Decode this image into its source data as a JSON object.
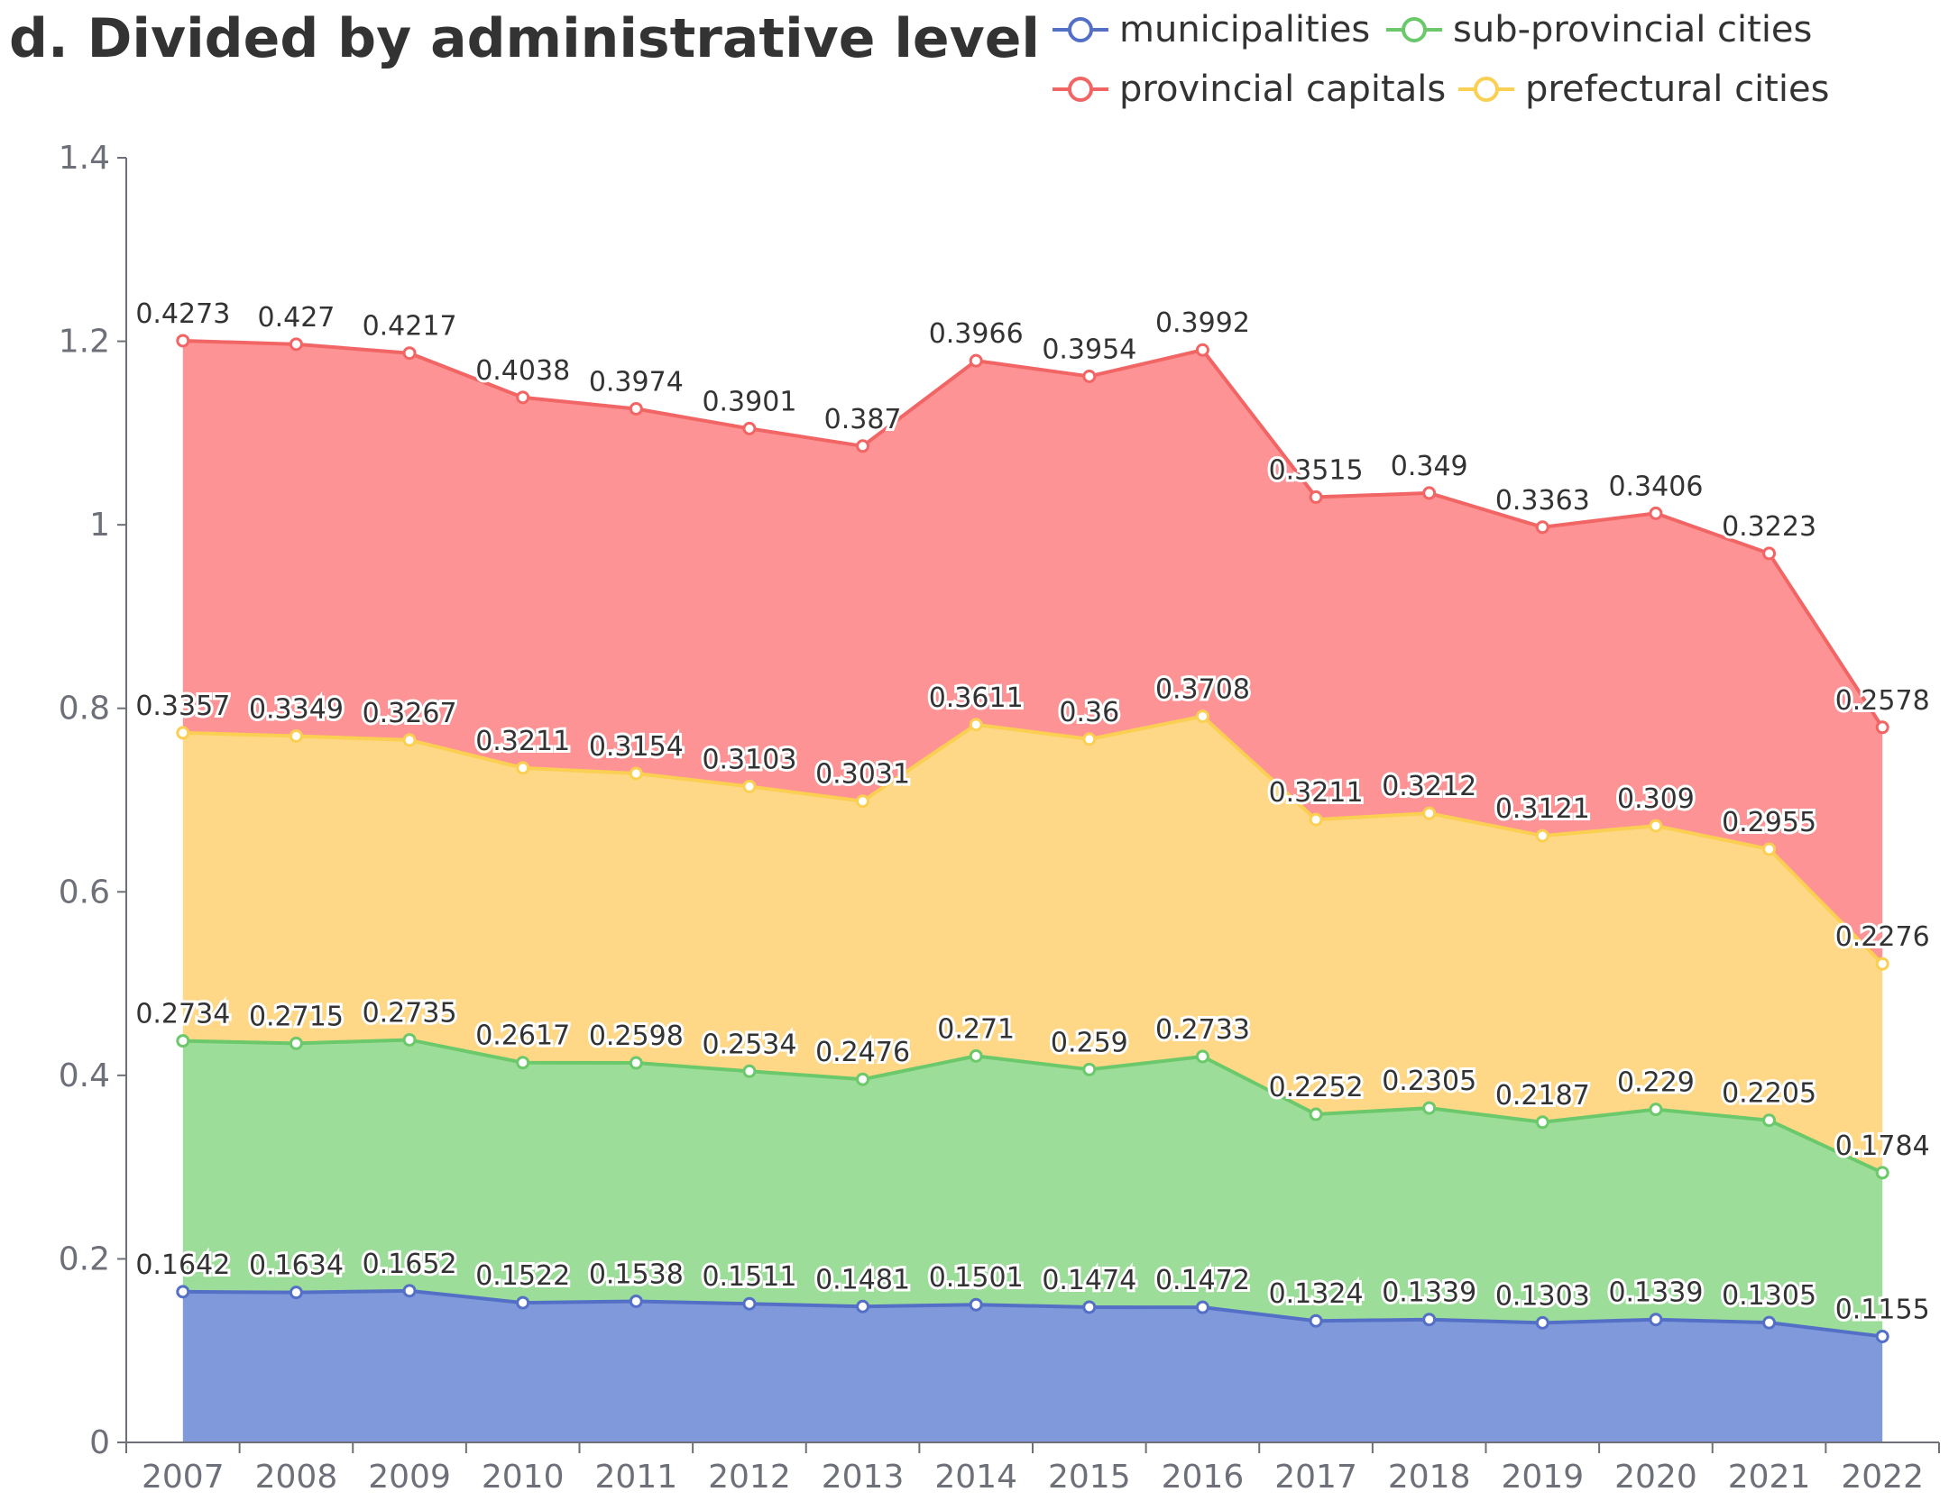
{
  "chart_data": {
    "type": "area",
    "stacked": true,
    "title": "d. Divided by administrative level",
    "categories": [
      "2007",
      "2008",
      "2009",
      "2010",
      "2011",
      "2012",
      "2013",
      "2014",
      "2015",
      "2016",
      "2017",
      "2018",
      "2019",
      "2020",
      "2021",
      "2022"
    ],
    "series": [
      {
        "name": "municipalities",
        "color": "#5470c6",
        "fill": "#8099da",
        "values": [
          0.1642,
          0.1634,
          0.1652,
          0.1522,
          0.1538,
          0.1511,
          0.1481,
          0.1501,
          0.1474,
          0.1472,
          0.1324,
          0.1339,
          0.1303,
          0.1339,
          0.1305,
          0.1155
        ],
        "labels": [
          "0.1642",
          "0.1634",
          "0.1652",
          "0.1522",
          "0.1538",
          "0.1511",
          "0.1481",
          "0.1501",
          "0.1474",
          "0.1472",
          "0.1324",
          "0.1339",
          "0.1303",
          "0.1339",
          "0.1305",
          "0.1155"
        ]
      },
      {
        "name": "sub-provincial cities",
        "color": "#6bc96b",
        "fill": "#9ddd9a",
        "values": [
          0.2734,
          0.2715,
          0.2735,
          0.2617,
          0.2598,
          0.2534,
          0.2476,
          0.271,
          0.259,
          0.2733,
          0.2252,
          0.2305,
          0.2187,
          0.229,
          0.2205,
          0.1784
        ],
        "labels": [
          "0.2734",
          "0.2715",
          "0.2735",
          "0.2617",
          "0.2598",
          "0.2534",
          "0.2476",
          "0.271",
          "0.259",
          "0.2733",
          "0.2252",
          "0.2305",
          "0.2187",
          "0.229",
          "0.2205",
          "0.1784"
        ]
      },
      {
        "name": "prefectural cities",
        "color": "#fbcf52",
        "fill": "#fed887",
        "values": [
          0.3357,
          0.3349,
          0.3267,
          0.3211,
          0.3154,
          0.3103,
          0.3031,
          0.3611,
          0.36,
          0.3708,
          0.3211,
          0.3212,
          0.3121,
          0.309,
          0.2955,
          0.2276
        ],
        "labels": [
          "0.3357",
          "0.3349",
          "0.3267",
          "0.3211",
          "0.3154",
          "0.3103",
          "0.3031",
          "0.3611",
          "0.36",
          "0.3708",
          "0.3211",
          "0.3212",
          "0.3121",
          "0.309",
          "0.2955",
          "0.2276"
        ]
      },
      {
        "name": "provincial capitals",
        "color": "#f26565",
        "fill": "#fd9394",
        "values": [
          0.4273,
          0.427,
          0.4217,
          0.4038,
          0.3974,
          0.3901,
          0.387,
          0.3966,
          0.3954,
          0.3992,
          0.3515,
          0.349,
          0.3363,
          0.3406,
          0.3223,
          0.2578
        ],
        "labels": [
          "0.4273",
          "0.427",
          "0.4217",
          "0.4038",
          "0.3974",
          "0.3901",
          "0.387",
          "0.3966",
          "0.3954",
          "0.3992",
          "0.3515",
          "0.349",
          "0.3363",
          "0.3406",
          "0.3223",
          "0.2578"
        ]
      }
    ],
    "legend_order": [
      "municipalities",
      "sub-provincial cities",
      "provincial capitals",
      "prefectural cities"
    ],
    "ylim": [
      0,
      1.4
    ],
    "yticks": [
      0,
      0.2,
      0.4,
      0.6,
      0.8,
      1,
      1.2,
      1.4
    ],
    "ytick_labels": [
      "0",
      "0.2",
      "0.4",
      "0.6",
      "0.8",
      "1",
      "1.2",
      "1.4"
    ],
    "xlabel": "",
    "ylabel": "",
    "grid": false,
    "legend_position": "top-right"
  }
}
